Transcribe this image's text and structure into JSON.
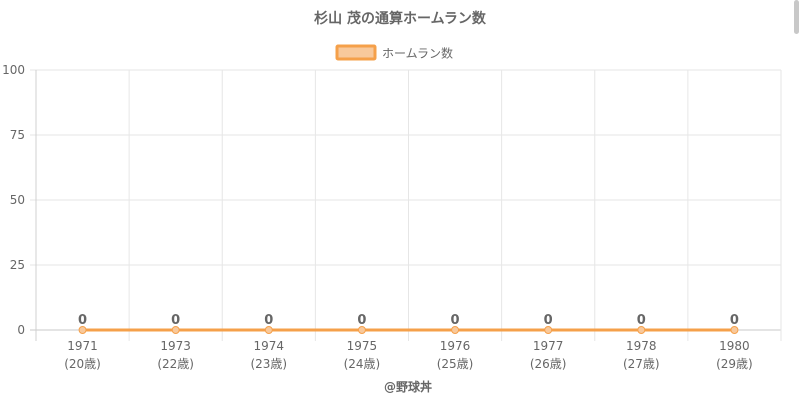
{
  "chart_data": {
    "type": "line",
    "title": "杉山 茂の通算ホームラン数",
    "legend_position": "top-center",
    "grid": true,
    "categories": [
      "1971",
      "1973",
      "1974",
      "1975",
      "1976",
      "1977",
      "1978",
      "1980"
    ],
    "category_sublabels": [
      "(20歳)",
      "(22歳)",
      "(23歳)",
      "(24歳)",
      "(25歳)",
      "(26歳)",
      "(27歳)",
      "(29歳)"
    ],
    "series": [
      {
        "name": "ホームラン数",
        "values": [
          0,
          0,
          0,
          0,
          0,
          0,
          0,
          0
        ],
        "color": "#f5a04a",
        "fill": "#f8c99c"
      }
    ],
    "ylim": [
      0,
      100
    ],
    "yticks": [
      0,
      25,
      50,
      75,
      100
    ],
    "data_labels": [
      "0",
      "0",
      "0",
      "0",
      "0",
      "0",
      "0",
      "0"
    ],
    "credit": "@野球丼"
  }
}
